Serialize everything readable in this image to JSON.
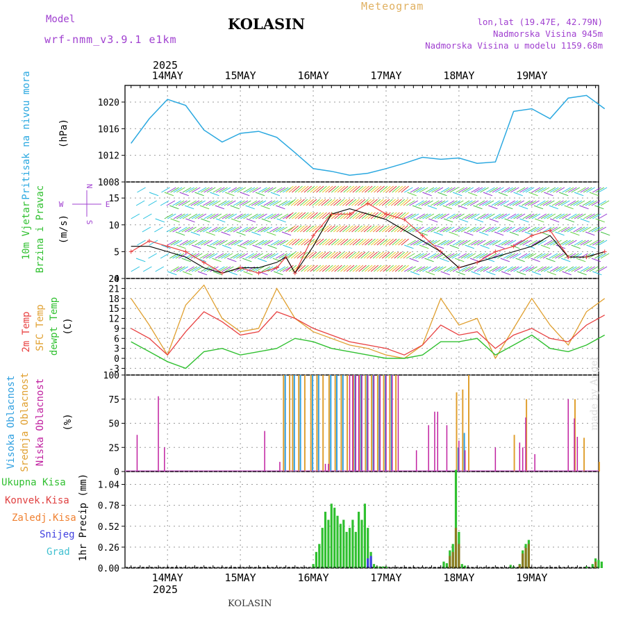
{
  "header": {
    "model_label": "Model",
    "model_name": "wrf-nmm_v3.9.1 e1km",
    "station": "KOLASIN",
    "meteogram_label": "Meteogram",
    "coords": "lon,lat (19.47E, 42.79N)",
    "altitude": "Nadmorska Visina 945m",
    "model_altitude": "Nadmorska Visina u modelu 1159.68m"
  },
  "footer": {
    "station": "KOLASIN",
    "made_by": "made by Angel"
  },
  "time_axis": {
    "year": "2025",
    "days": [
      "14MAY",
      "15MAY",
      "16MAY",
      "17MAY",
      "18MAY",
      "19MAY"
    ],
    "start_hour": 0,
    "end_hour": 144
  },
  "colors": {
    "pressure": "#2aa8e0",
    "temp2m": "#e84040",
    "sfc_temp": "#e0a030",
    "dewpt": "#30c030",
    "high_cloud": "#30a0e0",
    "mid_cloud": "#e0a030",
    "low_cloud": "#c020a0",
    "total_precip": "#30c030",
    "conv_precip": "#e04040",
    "frozen": "#f08030",
    "snow": "#4040e0",
    "hail": "#40c0d0",
    "wind_label": "#30c030",
    "dir_label": "#a040d0"
  },
  "panels": {
    "pressure": {
      "label_main": "Pritisak na nivou mora",
      "unit": "(hPa)"
    },
    "wind": {
      "label_line1": "10m Vjetar",
      "label_line2": "Brzina i Pravac",
      "unit": "(m/s)",
      "compass_n": "N",
      "compass_s": "S",
      "compass_e": "E",
      "compass_w": "W"
    },
    "temp": {
      "label_2m": "2m Temp",
      "label_sfc": "SFC Temp",
      "label_dew": "dewpt Temp",
      "unit": "(C)"
    },
    "cloud": {
      "label_high": "Visoka Oblacnost",
      "label_mid": "Srednja Oblacnost",
      "label_low": "Niska Oblacnost",
      "unit": "(%)"
    },
    "precip": {
      "label_total": "Ukupna Kisa",
      "label_conv": "Konvek.Kisa",
      "label_frozen": "Zaledj.Kisa",
      "label_snow": "Snijeg",
      "label_hail": "Grad",
      "unit": "1hr Precip (mm)"
    }
  },
  "chart_data": [
    {
      "type": "line",
      "name": "pressure",
      "ylim": [
        1008,
        1022.5
      ],
      "yticks": [
        1008,
        1012,
        1016,
        1020
      ],
      "x": [
        -12,
        -6,
        0,
        6,
        12,
        18,
        24,
        30,
        36,
        42,
        48,
        54,
        60,
        66,
        72,
        78,
        84,
        90,
        96,
        102,
        108,
        114,
        120,
        126,
        132,
        138,
        144
      ],
      "series": [
        {
          "values": [
            1013.8,
            1017.5,
            1020.4,
            1019.5,
            1015.8,
            1014.0,
            1015.3,
            1015.6,
            1014.7,
            1012.4,
            1010.0,
            1009.6,
            1009.0,
            1009.3,
            1010.0,
            1010.8,
            1011.7,
            1011.4,
            1011.6,
            1010.8,
            1011.0,
            1018.6,
            1019.0,
            1017.5,
            1020.6,
            1021.0,
            1019.0
          ]
        }
      ]
    },
    {
      "type": "line",
      "name": "wind",
      "ylim": [
        0,
        18
      ],
      "yticks": [
        0,
        5,
        10,
        15
      ],
      "x": [
        -12,
        -6,
        0,
        6,
        12,
        18,
        24,
        30,
        36,
        39,
        42,
        48,
        54,
        60,
        66,
        72,
        78,
        84,
        90,
        96,
        102,
        108,
        114,
        120,
        126,
        132,
        138,
        144
      ],
      "series": [
        {
          "values": [
            5,
            7,
            6,
            5,
            3,
            1,
            2,
            1,
            2,
            4,
            1,
            8,
            12,
            12,
            14,
            12,
            11,
            8,
            5,
            2,
            3,
            5,
            6,
            8,
            9,
            4,
            4,
            5
          ]
        },
        {
          "values": [
            6,
            6,
            5,
            4,
            2,
            1,
            2,
            2,
            3,
            4,
            1,
            6,
            12,
            13,
            12,
            11,
            9,
            7,
            5,
            2,
            3,
            4,
            5,
            6,
            8,
            4,
            4,
            5
          ]
        }
      ]
    },
    {
      "type": "line",
      "name": "temperature",
      "ylim": [
        -5,
        24
      ],
      "yticks": [
        -3,
        0,
        3,
        6,
        9,
        12,
        15,
        18,
        21,
        24
      ],
      "x": [
        -12,
        -6,
        0,
        6,
        12,
        18,
        24,
        30,
        36,
        42,
        48,
        54,
        60,
        66,
        72,
        78,
        84,
        90,
        96,
        102,
        108,
        114,
        120,
        126,
        132,
        138,
        144
      ],
      "series": [
        {
          "name": "2m Temp",
          "values": [
            9,
            6,
            1,
            8,
            14,
            11,
            7,
            8,
            14,
            12,
            9,
            7,
            5,
            4,
            3,
            1,
            4,
            10,
            7,
            8,
            3,
            7,
            9,
            6,
            5,
            10,
            13
          ]
        },
        {
          "name": "SFC Temp",
          "values": [
            18,
            10,
            1,
            16,
            22,
            12,
            8,
            9,
            21,
            12,
            8,
            6,
            4,
            3,
            1,
            0,
            4,
            18,
            10,
            12,
            0,
            9,
            18,
            10,
            4,
            14,
            18
          ]
        },
        {
          "name": "dewpt Temp",
          "values": [
            5,
            2,
            -1,
            -3,
            2,
            3,
            1,
            2,
            3,
            6,
            5,
            3,
            2,
            1,
            0,
            0,
            1,
            5,
            5,
            6,
            1,
            4,
            7,
            3,
            2,
            4,
            7
          ]
        }
      ]
    },
    {
      "type": "bar",
      "name": "cloud",
      "ylim": [
        0,
        100
      ],
      "yticks": [
        0,
        25,
        50,
        75,
        100
      ],
      "low": {
        "x": [
          -10,
          -3,
          -1,
          32,
          37,
          52,
          53,
          60,
          61,
          62,
          63,
          64,
          66,
          68,
          70,
          72,
          74,
          76,
          82,
          86,
          88,
          89,
          92,
          96,
          98,
          108,
          116,
          117,
          118,
          121,
          132,
          134,
          135
        ],
        "values": [
          38,
          78,
          25,
          42,
          10,
          8,
          8,
          100,
          100,
          100,
          100,
          100,
          100,
          100,
          100,
          100,
          100,
          100,
          22,
          48,
          62,
          62,
          48,
          32,
          22,
          25,
          30,
          25,
          56,
          18,
          75,
          55,
          36
        ]
      },
      "mid": {
        "x": [
          38,
          40,
          41,
          43,
          45,
          47,
          49,
          51,
          53,
          55,
          57,
          59,
          61,
          63,
          65,
          67,
          69,
          71,
          73,
          75,
          95,
          97,
          99,
          114,
          118,
          134,
          137,
          142
        ],
        "values": [
          100,
          100,
          100,
          100,
          100,
          100,
          100,
          100,
          100,
          100,
          100,
          100,
          100,
          100,
          100,
          100,
          100,
          100,
          100,
          100,
          82,
          85,
          100,
          38,
          75,
          75,
          35,
          10
        ]
      },
      "high": {
        "x": [
          39,
          42,
          44,
          48,
          50,
          54,
          56,
          58,
          62,
          64,
          66,
          68,
          70,
          72,
          74,
          96,
          98
        ],
        "values": [
          100,
          100,
          100,
          100,
          100,
          100,
          100,
          100,
          100,
          100,
          100,
          100,
          100,
          100,
          100,
          25,
          40
        ]
      }
    },
    {
      "type": "bar",
      "name": "precipitation",
      "ylim": [
        0,
        1.2
      ],
      "yticks": [
        0,
        0.26,
        0.52,
        0.78,
        1.04
      ],
      "total": {
        "x": [
          48,
          49,
          50,
          51,
          52,
          53,
          54,
          55,
          56,
          57,
          58,
          59,
          60,
          61,
          62,
          63,
          64,
          65,
          66,
          67,
          68,
          69,
          70,
          71,
          72,
          91,
          92,
          93,
          94,
          95,
          96,
          97,
          98,
          113,
          114,
          116,
          117,
          118,
          119,
          138,
          140,
          141,
          142,
          143
        ],
        "values": [
          0.05,
          0.2,
          0.3,
          0.5,
          0.7,
          0.6,
          0.8,
          0.75,
          0.65,
          0.55,
          0.6,
          0.45,
          0.5,
          0.6,
          0.45,
          0.7,
          0.6,
          0.8,
          0.5,
          0.2,
          0.05,
          0.02,
          0.02,
          0.02,
          0.02,
          0.08,
          0.06,
          0.22,
          0.3,
          1.22,
          0.45,
          0.05,
          0.03,
          0.04,
          0.02,
          0.05,
          0.22,
          0.3,
          0.35,
          0.02,
          0.05,
          0.12,
          0.1,
          0.08
        ]
      },
      "conv": {
        "x": [
          93,
          94,
          95,
          96,
          116,
          117,
          118,
          119,
          141
        ],
        "values": [
          0.15,
          0.2,
          0.5,
          0.3,
          0.04,
          0.18,
          0.25,
          0.3,
          0.08
        ]
      },
      "snow": {
        "x": [
          66,
          67
        ],
        "values": [
          0.12,
          0.15
        ]
      }
    }
  ]
}
